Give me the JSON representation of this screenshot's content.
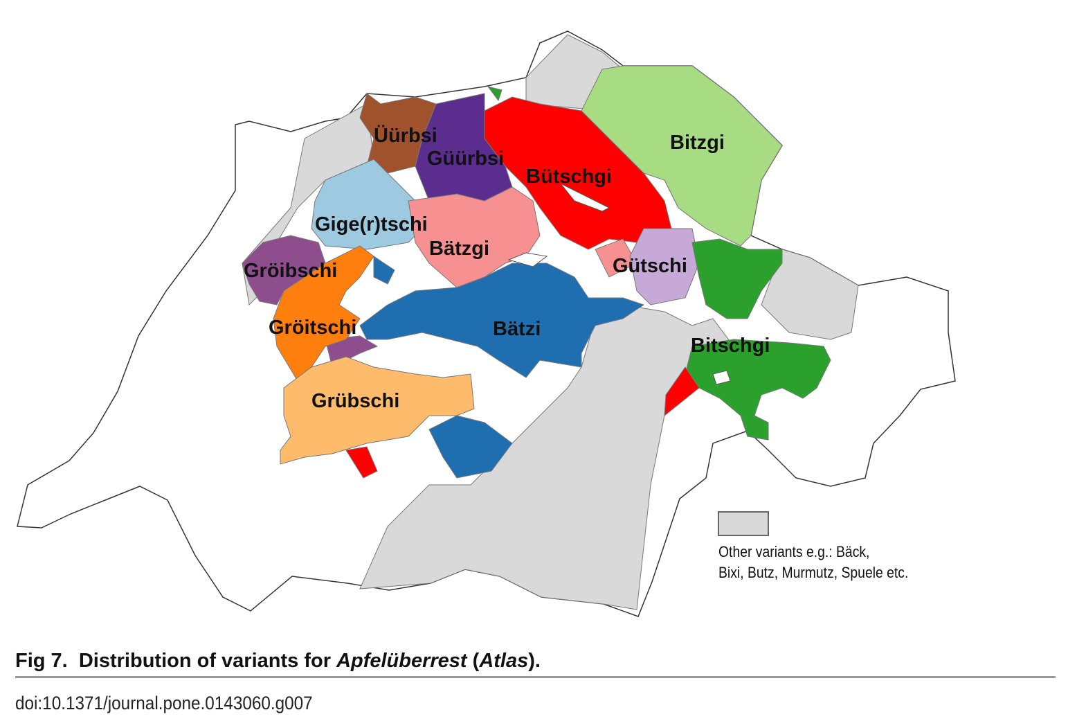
{
  "figure": {
    "caption_prefix": "Fig 7.",
    "caption_text": "Distribution of variants for ",
    "caption_term": "Apfelüberrest",
    "caption_source": "Atlas",
    "doi": "doi:10.1371/journal.pone.0143060.g007"
  },
  "map": {
    "regions": [
      {
        "label": "Üürbsi",
        "color": "#a0522d"
      },
      {
        "label": "Güürbsi",
        "color": "#5b2d8e"
      },
      {
        "label": "Bütschgi",
        "color": "#ff0000"
      },
      {
        "label": "Bitzgi",
        "color": "#a8dc82"
      },
      {
        "label": "Gige(r)tschi",
        "color": "#9ecae1"
      },
      {
        "label": "Bätzgi",
        "color": "#f79191"
      },
      {
        "label": "Gröibschi",
        "color": "#8e4e8e"
      },
      {
        "label": "Gütschi",
        "color": "#c7a9d8"
      },
      {
        "label": "Gröitschi",
        "color": "#ff7f0e"
      },
      {
        "label": "Bätzi",
        "color": "#1f6fb0"
      },
      {
        "label": "Bitschgi",
        "color": "#2ca02c"
      },
      {
        "label": "Grübschi",
        "color": "#fdbb6b"
      }
    ],
    "other_color": "#d9d9d9",
    "legend": {
      "line1": "Other variants e.g.: Bäck,",
      "line2": "Bixi, Butz, Murmutz, Spuele etc."
    }
  }
}
